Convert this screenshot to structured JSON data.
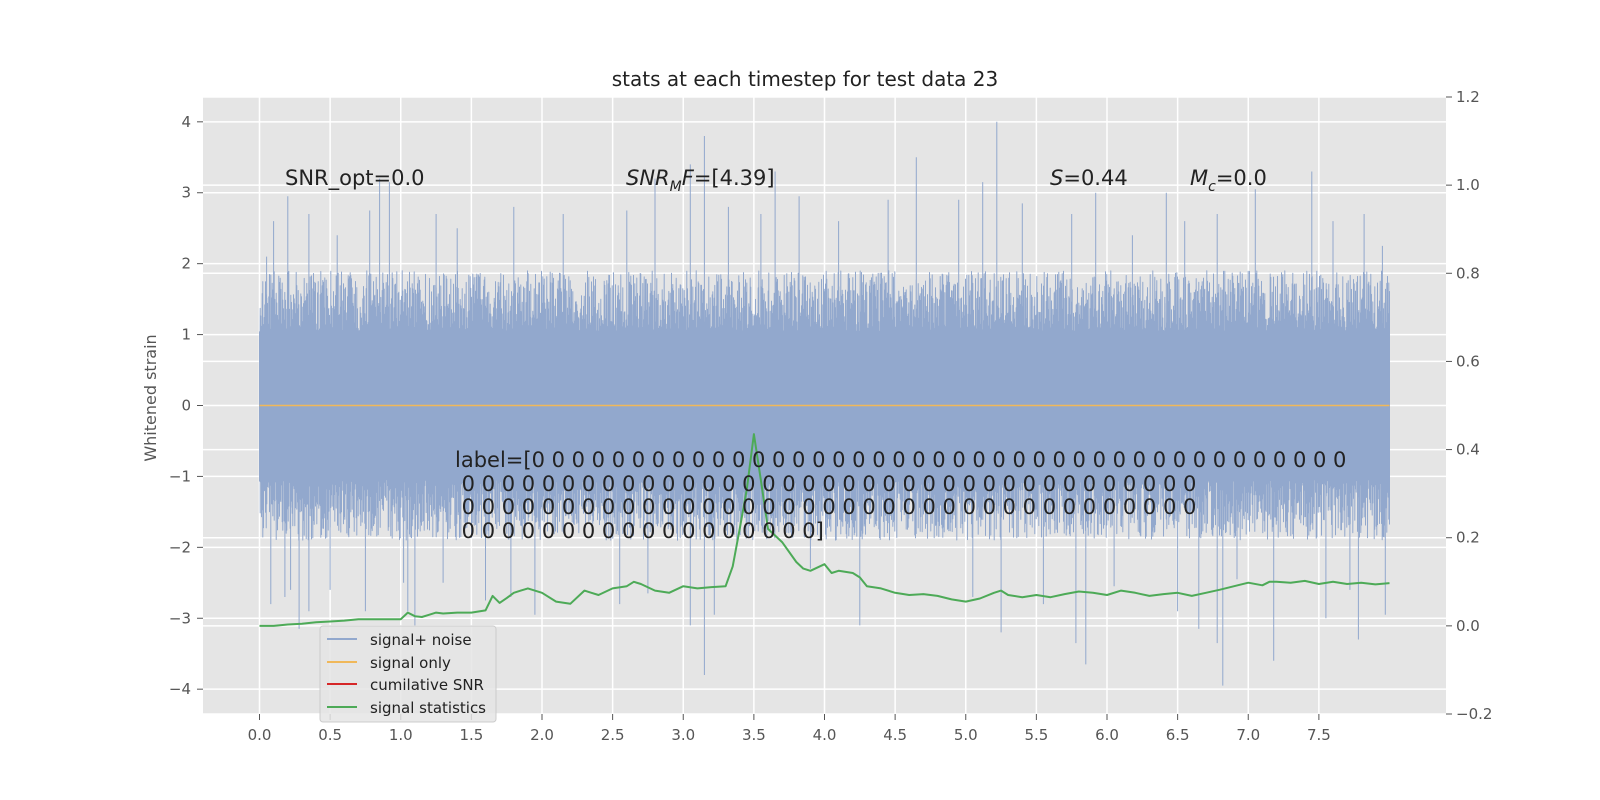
{
  "chart_data": {
    "type": "line",
    "title": "stats at each timestep for test data 23",
    "ylabel": "Whitened strain",
    "xlabel": "",
    "xlim": [
      -0.4,
      8.4
    ],
    "ylim": [
      -4.35,
      4.35
    ],
    "ylim_right": [
      -0.2,
      1.2
    ],
    "xticks": [
      0.0,
      0.5,
      1.0,
      1.5,
      2.0,
      2.5,
      3.0,
      3.5,
      4.0,
      4.5,
      5.0,
      5.5,
      6.0,
      6.5,
      7.0,
      7.5
    ],
    "xtick_labels": [
      "0.0",
      "0.5",
      "1.0",
      "1.5",
      "2.0",
      "2.5",
      "3.0",
      "3.5",
      "4.0",
      "4.5",
      "5.0",
      "5.5",
      "6.0",
      "6.5",
      "7.0",
      "7.5"
    ],
    "yticks": [
      -4,
      -3,
      -2,
      -1,
      0,
      1,
      2,
      3,
      4
    ],
    "ytick_labels": [
      "−4",
      "−3",
      "−2",
      "−1",
      "0",
      "1",
      "2",
      "3",
      "4"
    ],
    "yticks_right": [
      -0.2,
      0.0,
      0.2,
      0.4,
      0.6,
      0.8,
      1.0,
      1.2
    ],
    "ytick_labels_right": [
      "−0.2",
      "0.0",
      "0.2",
      "0.4",
      "0.6",
      "0.8",
      "1.0",
      "1.2"
    ],
    "grid": true,
    "legend_position": "lower-left",
    "annotations": [
      {
        "id": "snr-opt",
        "text": "SNR_opt=0.0"
      },
      {
        "id": "snr-mf",
        "text": "SNR_MF=[4.39]"
      },
      {
        "id": "s-stat",
        "text": "S=0.44"
      },
      {
        "id": "m-chirp",
        "text": "M_c=0.0"
      }
    ],
    "label_text": [
      "label=[0 0 0 0 0 0 0 0 0 0 0 0 0 0 0 0 0 0 0 0 0 0 0 0 0 0 0 0 0 0 0 0 0 0 0 0 0 0 0 0 0",
      " 0 0 0 0 0 0 0 0 0 0 0 0 0 0 0 0 0 0 0 0 0 0 0 0 0 0 0 0 0 0 0 0 0 0 0 0 0",
      " 0 0 0 0 0 0 0 0 0 0 0 0 0 0 0 0 0 0 0 0 0 0 0 0 0 0 0 0 0 0 0 0 0 0 0 0 0",
      " 0 0 0 0 0 0 0 0 0 0 0 0 0 0 0 0 0 0]"
    ],
    "series": [
      {
        "name": "signal+ noise",
        "color": "#92a8cd",
        "axis": "left",
        "x_range": [
          0.0,
          8.0
        ],
        "sample_rate_hz": 512,
        "typical_envelope": [
          -1.9,
          1.9
        ],
        "spikes_up": [
          [
            0.05,
            2.1
          ],
          [
            0.1,
            2.6
          ],
          [
            0.2,
            2.95
          ],
          [
            0.35,
            2.7
          ],
          [
            0.55,
            2.4
          ],
          [
            0.78,
            2.75
          ],
          [
            0.85,
            3.2
          ],
          [
            0.92,
            3.15
          ],
          [
            1.25,
            2.7
          ],
          [
            1.4,
            2.5
          ],
          [
            1.8,
            2.8
          ],
          [
            2.15,
            2.7
          ],
          [
            2.6,
            2.75
          ],
          [
            2.8,
            3.2
          ],
          [
            3.05,
            3.4
          ],
          [
            3.15,
            3.8
          ],
          [
            3.32,
            2.8
          ],
          [
            3.55,
            2.7
          ],
          [
            3.65,
            3.3
          ],
          [
            3.82,
            2.95
          ],
          [
            4.1,
            2.6
          ],
          [
            4.45,
            2.9
          ],
          [
            4.65,
            3.5
          ],
          [
            4.95,
            2.9
          ],
          [
            5.12,
            3.15
          ],
          [
            5.22,
            4.0
          ],
          [
            5.4,
            2.85
          ],
          [
            5.75,
            2.7
          ],
          [
            5.92,
            3.0
          ],
          [
            6.18,
            2.4
          ],
          [
            6.42,
            3.0
          ],
          [
            6.55,
            2.6
          ],
          [
            6.78,
            2.7
          ],
          [
            7.05,
            3.05
          ],
          [
            7.45,
            3.3
          ],
          [
            7.6,
            2.6
          ],
          [
            7.82,
            2.7
          ],
          [
            7.95,
            2.25
          ]
        ],
        "spikes_down": [
          [
            0.05,
            -1.2
          ],
          [
            0.08,
            -2.8
          ],
          [
            0.18,
            -2.7
          ],
          [
            0.22,
            -2.6
          ],
          [
            0.28,
            -3.15
          ],
          [
            0.35,
            -2.9
          ],
          [
            0.5,
            -2.6
          ],
          [
            0.75,
            -2.9
          ],
          [
            1.02,
            -2.5
          ],
          [
            1.05,
            -2.9
          ],
          [
            1.1,
            -3.1
          ],
          [
            1.3,
            -2.5
          ],
          [
            1.6,
            -2.75
          ],
          [
            1.78,
            -2.7
          ],
          [
            1.95,
            -2.95
          ],
          [
            2.55,
            -2.8
          ],
          [
            2.75,
            -2.65
          ],
          [
            3.05,
            -3.1
          ],
          [
            3.15,
            -3.8
          ],
          [
            3.22,
            -2.95
          ],
          [
            3.9,
            -2.3
          ],
          [
            4.25,
            -3.1
          ],
          [
            5.05,
            -2.7
          ],
          [
            5.25,
            -3.2
          ],
          [
            5.55,
            -2.8
          ],
          [
            5.78,
            -3.35
          ],
          [
            5.85,
            -3.65
          ],
          [
            6.05,
            -2.55
          ],
          [
            6.5,
            -2.9
          ],
          [
            6.65,
            -3.15
          ],
          [
            6.78,
            -3.35
          ],
          [
            6.82,
            -3.95
          ],
          [
            6.92,
            -2.45
          ],
          [
            7.18,
            -3.6
          ],
          [
            7.55,
            -3.0
          ],
          [
            7.72,
            -2.6
          ],
          [
            7.78,
            -3.3
          ],
          [
            7.97,
            -2.95
          ]
        ]
      },
      {
        "name": "signal only",
        "color": "#f0b85a",
        "axis": "left",
        "x": [
          0.0,
          8.0
        ],
        "y": [
          0.0,
          0.0
        ]
      },
      {
        "name": "cumilative SNR",
        "color": "#d62728",
        "axis": "right",
        "x": [],
        "y": []
      },
      {
        "name": "signal statistics",
        "color": "#4daa57",
        "axis": "right",
        "x": [
          0.0,
          0.1,
          0.2,
          0.3,
          0.4,
          0.5,
          0.6,
          0.7,
          0.8,
          0.9,
          1.0,
          1.05,
          1.1,
          1.15,
          1.2,
          1.25,
          1.3,
          1.4,
          1.5,
          1.6,
          1.65,
          1.7,
          1.75,
          1.8,
          1.85,
          1.9,
          2.0,
          2.1,
          2.2,
          2.3,
          2.35,
          2.4,
          2.5,
          2.6,
          2.65,
          2.7,
          2.8,
          2.9,
          3.0,
          3.1,
          3.2,
          3.3,
          3.35,
          3.4,
          3.45,
          3.5,
          3.55,
          3.6,
          3.7,
          3.8,
          3.85,
          3.9,
          4.0,
          4.05,
          4.1,
          4.2,
          4.25,
          4.3,
          4.4,
          4.5,
          4.6,
          4.7,
          4.8,
          4.9,
          5.0,
          5.1,
          5.2,
          5.25,
          5.3,
          5.4,
          5.5,
          5.6,
          5.7,
          5.8,
          5.9,
          6.0,
          6.1,
          6.2,
          6.3,
          6.4,
          6.5,
          6.6,
          6.7,
          6.8,
          6.9,
          7.0,
          7.1,
          7.15,
          7.2,
          7.3,
          7.4,
          7.5,
          7.6,
          7.7,
          7.8,
          7.9,
          8.0
        ],
        "y": [
          0.0,
          0.0,
          0.003,
          0.005,
          0.008,
          0.01,
          0.012,
          0.015,
          0.015,
          0.015,
          0.015,
          0.03,
          0.022,
          0.02,
          0.025,
          0.03,
          0.028,
          0.03,
          0.03,
          0.035,
          0.068,
          0.052,
          0.063,
          0.075,
          0.08,
          0.085,
          0.075,
          0.055,
          0.05,
          0.08,
          0.075,
          0.07,
          0.085,
          0.09,
          0.1,
          0.095,
          0.08,
          0.075,
          0.09,
          0.085,
          0.088,
          0.09,
          0.135,
          0.22,
          0.31,
          0.435,
          0.33,
          0.22,
          0.19,
          0.145,
          0.13,
          0.125,
          0.14,
          0.12,
          0.125,
          0.12,
          0.11,
          0.09,
          0.085,
          0.075,
          0.07,
          0.072,
          0.068,
          0.06,
          0.055,
          0.062,
          0.075,
          0.08,
          0.07,
          0.065,
          0.07,
          0.065,
          0.072,
          0.078,
          0.075,
          0.07,
          0.08,
          0.075,
          0.068,
          0.072,
          0.075,
          0.068,
          0.075,
          0.082,
          0.09,
          0.098,
          0.092,
          0.1,
          0.1,
          0.098,
          0.102,
          0.095,
          0.1,
          0.095,
          0.098,
          0.094,
          0.097
        ]
      }
    ]
  }
}
